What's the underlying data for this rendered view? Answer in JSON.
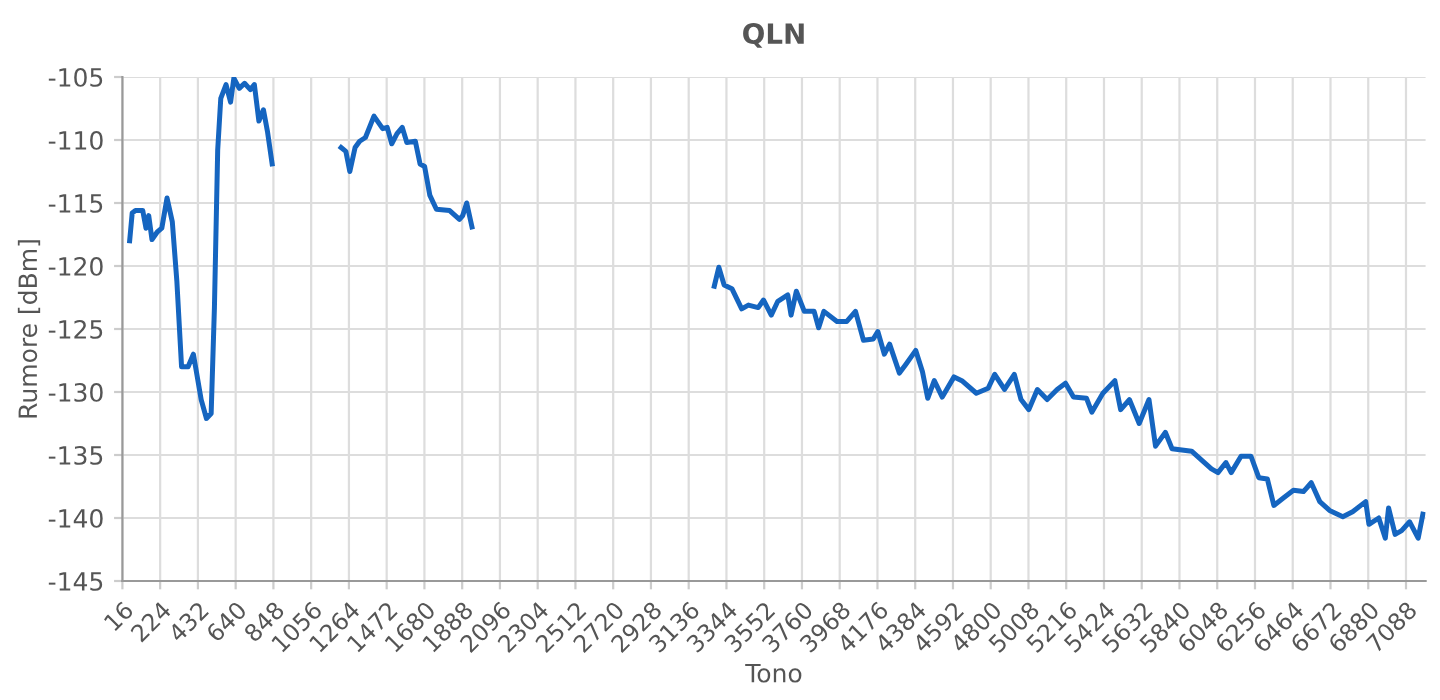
{
  "chart_data": {
    "type": "line",
    "title": "QLN",
    "xlabel": "Tono",
    "ylabel": "Rumore [dBm]",
    "x": [
      56,
      70,
      88,
      128,
      146,
      161,
      179,
      208,
      233,
      262,
      291,
      316,
      342,
      378,
      407,
      425,
      450,
      479,
      505,
      523,
      541,
      558,
      587,
      612,
      630,
      660,
      689,
      721,
      743,
      768,
      793,
      815,
      841,
      1000,
      1221,
      1247,
      1269,
      1298,
      1323,
      1355,
      1402,
      1450,
      1475,
      1500,
      1529,
      1558,
      1583,
      1630,
      1656,
      1681,
      1710,
      1746,
      1819,
      1873,
      1891,
      1913,
      1942,
      2500,
      3277,
      3302,
      3331,
      3374,
      3428,
      3465,
      3519,
      3548,
      3591,
      3627,
      3682,
      3700,
      3729,
      3773,
      3827,
      3852,
      3881,
      3953,
      4007,
      4055,
      4099,
      4153,
      4178,
      4214,
      4243,
      4297,
      4333,
      4387,
      4424,
      4453,
      4489,
      4533,
      4598,
      4641,
      4721,
      4786,
      4822,
      4876,
      4930,
      4967,
      5010,
      5057,
      5111,
      5166,
      5212,
      5256,
      5328,
      5357,
      5418,
      5484,
      5516,
      5564,
      5618,
      5672,
      5708,
      5762,
      5799,
      5907,
      5962,
      6016,
      6052,
      6096,
      6125,
      6179,
      6234,
      6277,
      6324,
      6360,
      6414,
      6468,
      6523,
      6566,
      6613,
      6667,
      6740,
      6794,
      6866,
      6884,
      6938,
      6974,
      6992,
      7028,
      7064,
      7108,
      7155,
      7181
    ],
    "series": [
      {
        "color": "#1565c0",
        "values": [
          -118,
          -115.8,
          -115.6,
          -115.6,
          -117,
          -116,
          -117.9,
          -117.3,
          -117,
          -114.6,
          -116.5,
          -121.2,
          -128,
          -128,
          -127,
          -128.5,
          -130.6,
          -132.1,
          -131.7,
          -123.3,
          -110.8,
          -106.7,
          -105.6,
          -107,
          -105.1,
          -105.9,
          -105.5,
          -106,
          -105.6,
          -108.5,
          -107.6,
          -109.3,
          -111.9,
          null,
          -110.6,
          -110.9,
          -112.5,
          -110.6,
          -110.1,
          -109.8,
          -108.1,
          -109.1,
          -109,
          -110.3,
          -109.5,
          -109,
          -110.2,
          -110.1,
          -111.9,
          -112.1,
          -114.4,
          -115.5,
          -115.6,
          -116.3,
          -116,
          -115,
          -116.9,
          null,
          -121.6,
          -120.1,
          -121.5,
          -121.8,
          -123.4,
          -123.1,
          -123.3,
          -122.7,
          -123.9,
          -122.8,
          -122.3,
          -123.9,
          -122,
          -123.6,
          -123.6,
          -124.9,
          -123.6,
          -124.4,
          -124.4,
          -123.6,
          -125.9,
          -125.8,
          -125.2,
          -127,
          -126.2,
          -128.5,
          -127.8,
          -126.7,
          -128.4,
          -130.5,
          -129.1,
          -130.4,
          -128.8,
          -129.1,
          -130.1,
          -129.7,
          -128.6,
          -129.8,
          -128.6,
          -130.6,
          -131.4,
          -129.8,
          -130.6,
          -129.8,
          -129.3,
          -130.4,
          -130.5,
          -131.6,
          -130.1,
          -129.1,
          -131.4,
          -130.6,
          -132.5,
          -130.6,
          -134.3,
          -133.2,
          -134.5,
          -134.7,
          -135.4,
          -136.1,
          -136.4,
          -135.6,
          -136.4,
          -135.1,
          -135.1,
          -136.8,
          -136.9,
          -139,
          -138.4,
          -137.8,
          -137.9,
          -137.2,
          -138.7,
          -139.4,
          -139.9,
          -139.5,
          -138.7,
          -140.5,
          -140,
          -141.6,
          -139.2,
          -141.3,
          -141,
          -140.3,
          -141.6,
          -139.7
        ]
      }
    ],
    "xlim": [
      16,
      7196
    ],
    "ylim": [
      -145,
      -105
    ],
    "xticks": [
      16,
      224,
      432,
      640,
      848,
      1056,
      1264,
      1472,
      1680,
      1888,
      2096,
      2304,
      2512,
      2720,
      2928,
      3136,
      3344,
      3552,
      3760,
      3968,
      4176,
      4384,
      4592,
      4800,
      5008,
      5216,
      5424,
      5632,
      5840,
      6048,
      6256,
      6464,
      6672,
      6880,
      7088
    ],
    "yticks": [
      -145,
      -140,
      -135,
      -130,
      -125,
      -120,
      -115,
      -110,
      -105
    ],
    "grid": true,
    "marker": "none",
    "line_style": "solid"
  }
}
